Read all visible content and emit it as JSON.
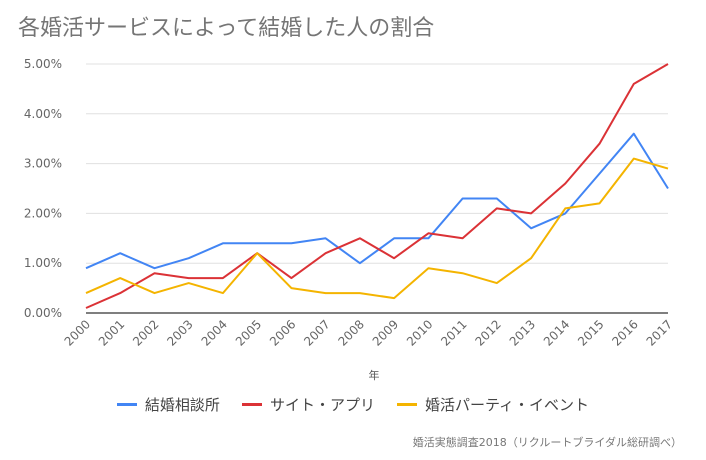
{
  "chart_data": {
    "type": "line",
    "title": "各婚活サービスによって結婚した人の割合",
    "xlabel": "年",
    "ylabel": "",
    "ylim": [
      0,
      0.05
    ],
    "yticks": [
      "0.00%",
      "1.00%",
      "2.00%",
      "3.00%",
      "4.00%",
      "5.00%"
    ],
    "grid": true,
    "legend_position": "bottom",
    "x": [
      "2000",
      "2001",
      "2002",
      "2003",
      "2004",
      "2005",
      "2006",
      "2007",
      "2008",
      "2009",
      "2010",
      "2011",
      "2012",
      "2013",
      "2014",
      "2015",
      "2016",
      "2017"
    ],
    "series": [
      {
        "name": "結婚相談所",
        "color": "#4285f4",
        "values": [
          0.009,
          0.012,
          0.009,
          0.011,
          0.014,
          0.014,
          0.014,
          0.015,
          0.01,
          0.015,
          0.015,
          0.023,
          0.023,
          0.017,
          0.02,
          0.028,
          0.036,
          0.025
        ]
      },
      {
        "name": "サイト・アプリ",
        "color": "#db3236",
        "values": [
          0.001,
          0.004,
          0.008,
          0.007,
          0.007,
          0.012,
          0.007,
          0.012,
          0.015,
          0.011,
          0.016,
          0.015,
          0.021,
          0.02,
          0.026,
          0.034,
          0.046,
          0.05
        ]
      },
      {
        "name": "婚活パーティ・イベント",
        "color": "#f4b400",
        "values": [
          0.004,
          0.007,
          0.004,
          0.006,
          0.004,
          0.012,
          0.005,
          0.004,
          0.004,
          0.003,
          0.009,
          0.008,
          0.006,
          0.011,
          0.021,
          0.022,
          0.031,
          0.029
        ]
      }
    ]
  },
  "source": "婚活実態調査2018（リクルートブライダル総研調べ）"
}
